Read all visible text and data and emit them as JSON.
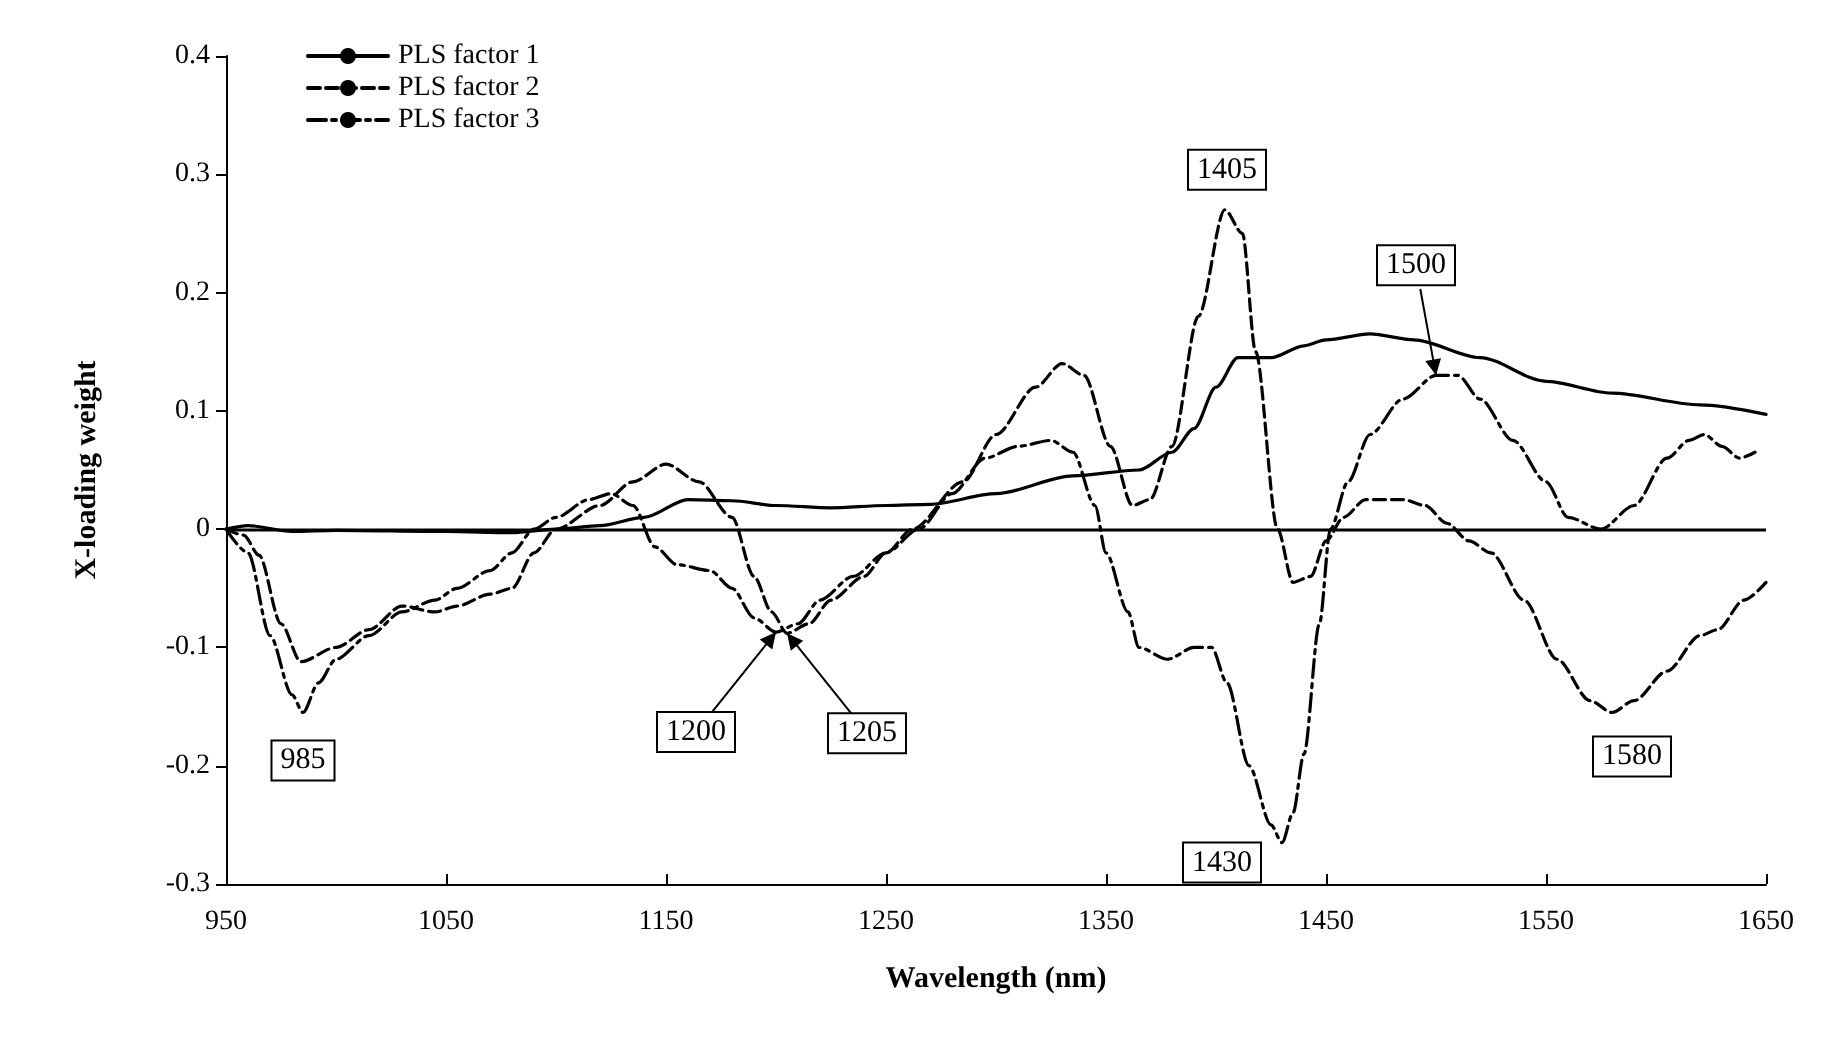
{
  "chart_data": {
    "type": "line",
    "xlabel": "Wavelength (nm)",
    "ylabel": "X-loading weight",
    "xlim": [
      950,
      1650
    ],
    "xticks": [
      950,
      1050,
      1150,
      1250,
      1350,
      1450,
      1550,
      1650
    ],
    "ylim": [
      -0.3,
      0.4
    ],
    "yticks": [
      -0.3,
      -0.2,
      -0.1,
      0,
      0.1,
      0.2,
      0.3,
      0.4
    ],
    "grid": false,
    "legend": "top left",
    "marker": "none",
    "ref_lines": [
      {
        "axis": "y",
        "value": 0,
        "color": "#000000"
      }
    ],
    "series": [
      {
        "name": "PLS factor 1",
        "color": "#000000",
        "line_style": "solid",
        "x": [
          950,
          960,
          980,
          1000,
          1050,
          1080,
          1100,
          1120,
          1140,
          1160,
          1180,
          1200,
          1225,
          1250,
          1270,
          1300,
          1335,
          1365,
          1380,
          1390,
          1400,
          1410,
          1425,
          1440,
          1450,
          1470,
          1490,
          1520,
          1550,
          1580,
          1620,
          1650
        ],
        "values": [
          0,
          0.003,
          -0.002,
          -0.001,
          -0.002,
          -0.003,
          0,
          0.003,
          0.01,
          0.025,
          0.024,
          0.02,
          0.018,
          0.02,
          0.021,
          0.03,
          0.045,
          0.05,
          0.065,
          0.085,
          0.12,
          0.145,
          0.145,
          0.155,
          0.16,
          0.165,
          0.16,
          0.145,
          0.125,
          0.115,
          0.105,
          0.097
        ]
      },
      {
        "name": "PLS factor 2",
        "color": "#000000",
        "line_style": "dashed",
        "x": [
          950,
          958,
          965,
          975,
          984,
          1000,
          1015,
          1030,
          1045,
          1055,
          1070,
          1080,
          1090,
          1100,
          1120,
          1135,
          1150,
          1165,
          1180,
          1190,
          1198,
          1205,
          1215,
          1225,
          1240,
          1250,
          1262,
          1285,
          1300,
          1318,
          1330,
          1340,
          1352,
          1362,
          1370,
          1380,
          1392,
          1404,
          1412,
          1418,
          1428,
          1435,
          1443,
          1450,
          1458,
          1468,
          1485,
          1495,
          1505,
          1515,
          1525,
          1540,
          1555,
          1570,
          1580,
          1590,
          1605,
          1620,
          1628,
          1640,
          1650
        ],
        "values": [
          0,
          -0.005,
          -0.022,
          -0.08,
          -0.112,
          -0.1,
          -0.085,
          -0.065,
          -0.07,
          -0.065,
          -0.055,
          -0.05,
          -0.02,
          0,
          0.02,
          0.04,
          0.055,
          0.04,
          0.01,
          -0.04,
          -0.07,
          -0.088,
          -0.08,
          -0.06,
          -0.04,
          -0.02,
          0,
          0.04,
          0.08,
          0.12,
          0.14,
          0.13,
          0.07,
          0.02,
          0.025,
          0.07,
          0.18,
          0.27,
          0.25,
          0.15,
          0,
          -0.045,
          -0.04,
          -0.01,
          0.01,
          0.025,
          0.025,
          0.02,
          0.005,
          -0.01,
          -0.02,
          -0.06,
          -0.11,
          -0.145,
          -0.155,
          -0.145,
          -0.12,
          -0.09,
          -0.085,
          -0.06,
          -0.045
        ]
      },
      {
        "name": "PLS factor 3",
        "color": "#000000",
        "line_style": "dashdot",
        "x": [
          950,
          960,
          970,
          980,
          985,
          992,
          1000,
          1015,
          1030,
          1045,
          1055,
          1070,
          1080,
          1090,
          1100,
          1115,
          1125,
          1135,
          1145,
          1155,
          1170,
          1180,
          1190,
          1200,
          1210,
          1220,
          1235,
          1250,
          1265,
          1280,
          1295,
          1310,
          1325,
          1335,
          1345,
          1350,
          1360,
          1365,
          1378,
          1390,
          1398,
          1405,
          1415,
          1425,
          1430,
          1435,
          1440,
          1447,
          1452,
          1460,
          1470,
          1485,
          1500,
          1510,
          1520,
          1535,
          1550,
          1560,
          1575,
          1590,
          1605,
          1615,
          1622,
          1630,
          1638,
          1645
        ],
        "values": [
          0,
          -0.02,
          -0.09,
          -0.14,
          -0.155,
          -0.13,
          -0.11,
          -0.09,
          -0.07,
          -0.06,
          -0.05,
          -0.035,
          -0.02,
          0,
          0.01,
          0.025,
          0.03,
          0.02,
          -0.015,
          -0.03,
          -0.035,
          -0.05,
          -0.075,
          -0.087,
          -0.08,
          -0.06,
          -0.04,
          -0.02,
          0,
          0.03,
          0.06,
          0.07,
          0.075,
          0.065,
          0.02,
          -0.02,
          -0.07,
          -0.1,
          -0.11,
          -0.1,
          -0.1,
          -0.13,
          -0.2,
          -0.25,
          -0.265,
          -0.24,
          -0.19,
          -0.08,
          0,
          0.04,
          0.08,
          0.11,
          0.13,
          0.13,
          0.11,
          0.075,
          0.04,
          0.01,
          0,
          0.02,
          0.06,
          0.075,
          0.08,
          0.07,
          0.06,
          0.065
        ]
      }
    ],
    "annotations": [
      {
        "text": "985",
        "x": 985,
        "y": -0.155
      },
      {
        "text": "1200",
        "x": 1200,
        "y": -0.087
      },
      {
        "text": "1205",
        "x": 1205,
        "y": -0.088
      },
      {
        "text": "1405",
        "x": 1405,
        "y": 0.27
      },
      {
        "text": "1430",
        "x": 1430,
        "y": -0.265
      },
      {
        "text": "1500",
        "x": 1500,
        "y": 0.13
      },
      {
        "text": "1580",
        "x": 1580,
        "y": -0.155
      }
    ]
  }
}
